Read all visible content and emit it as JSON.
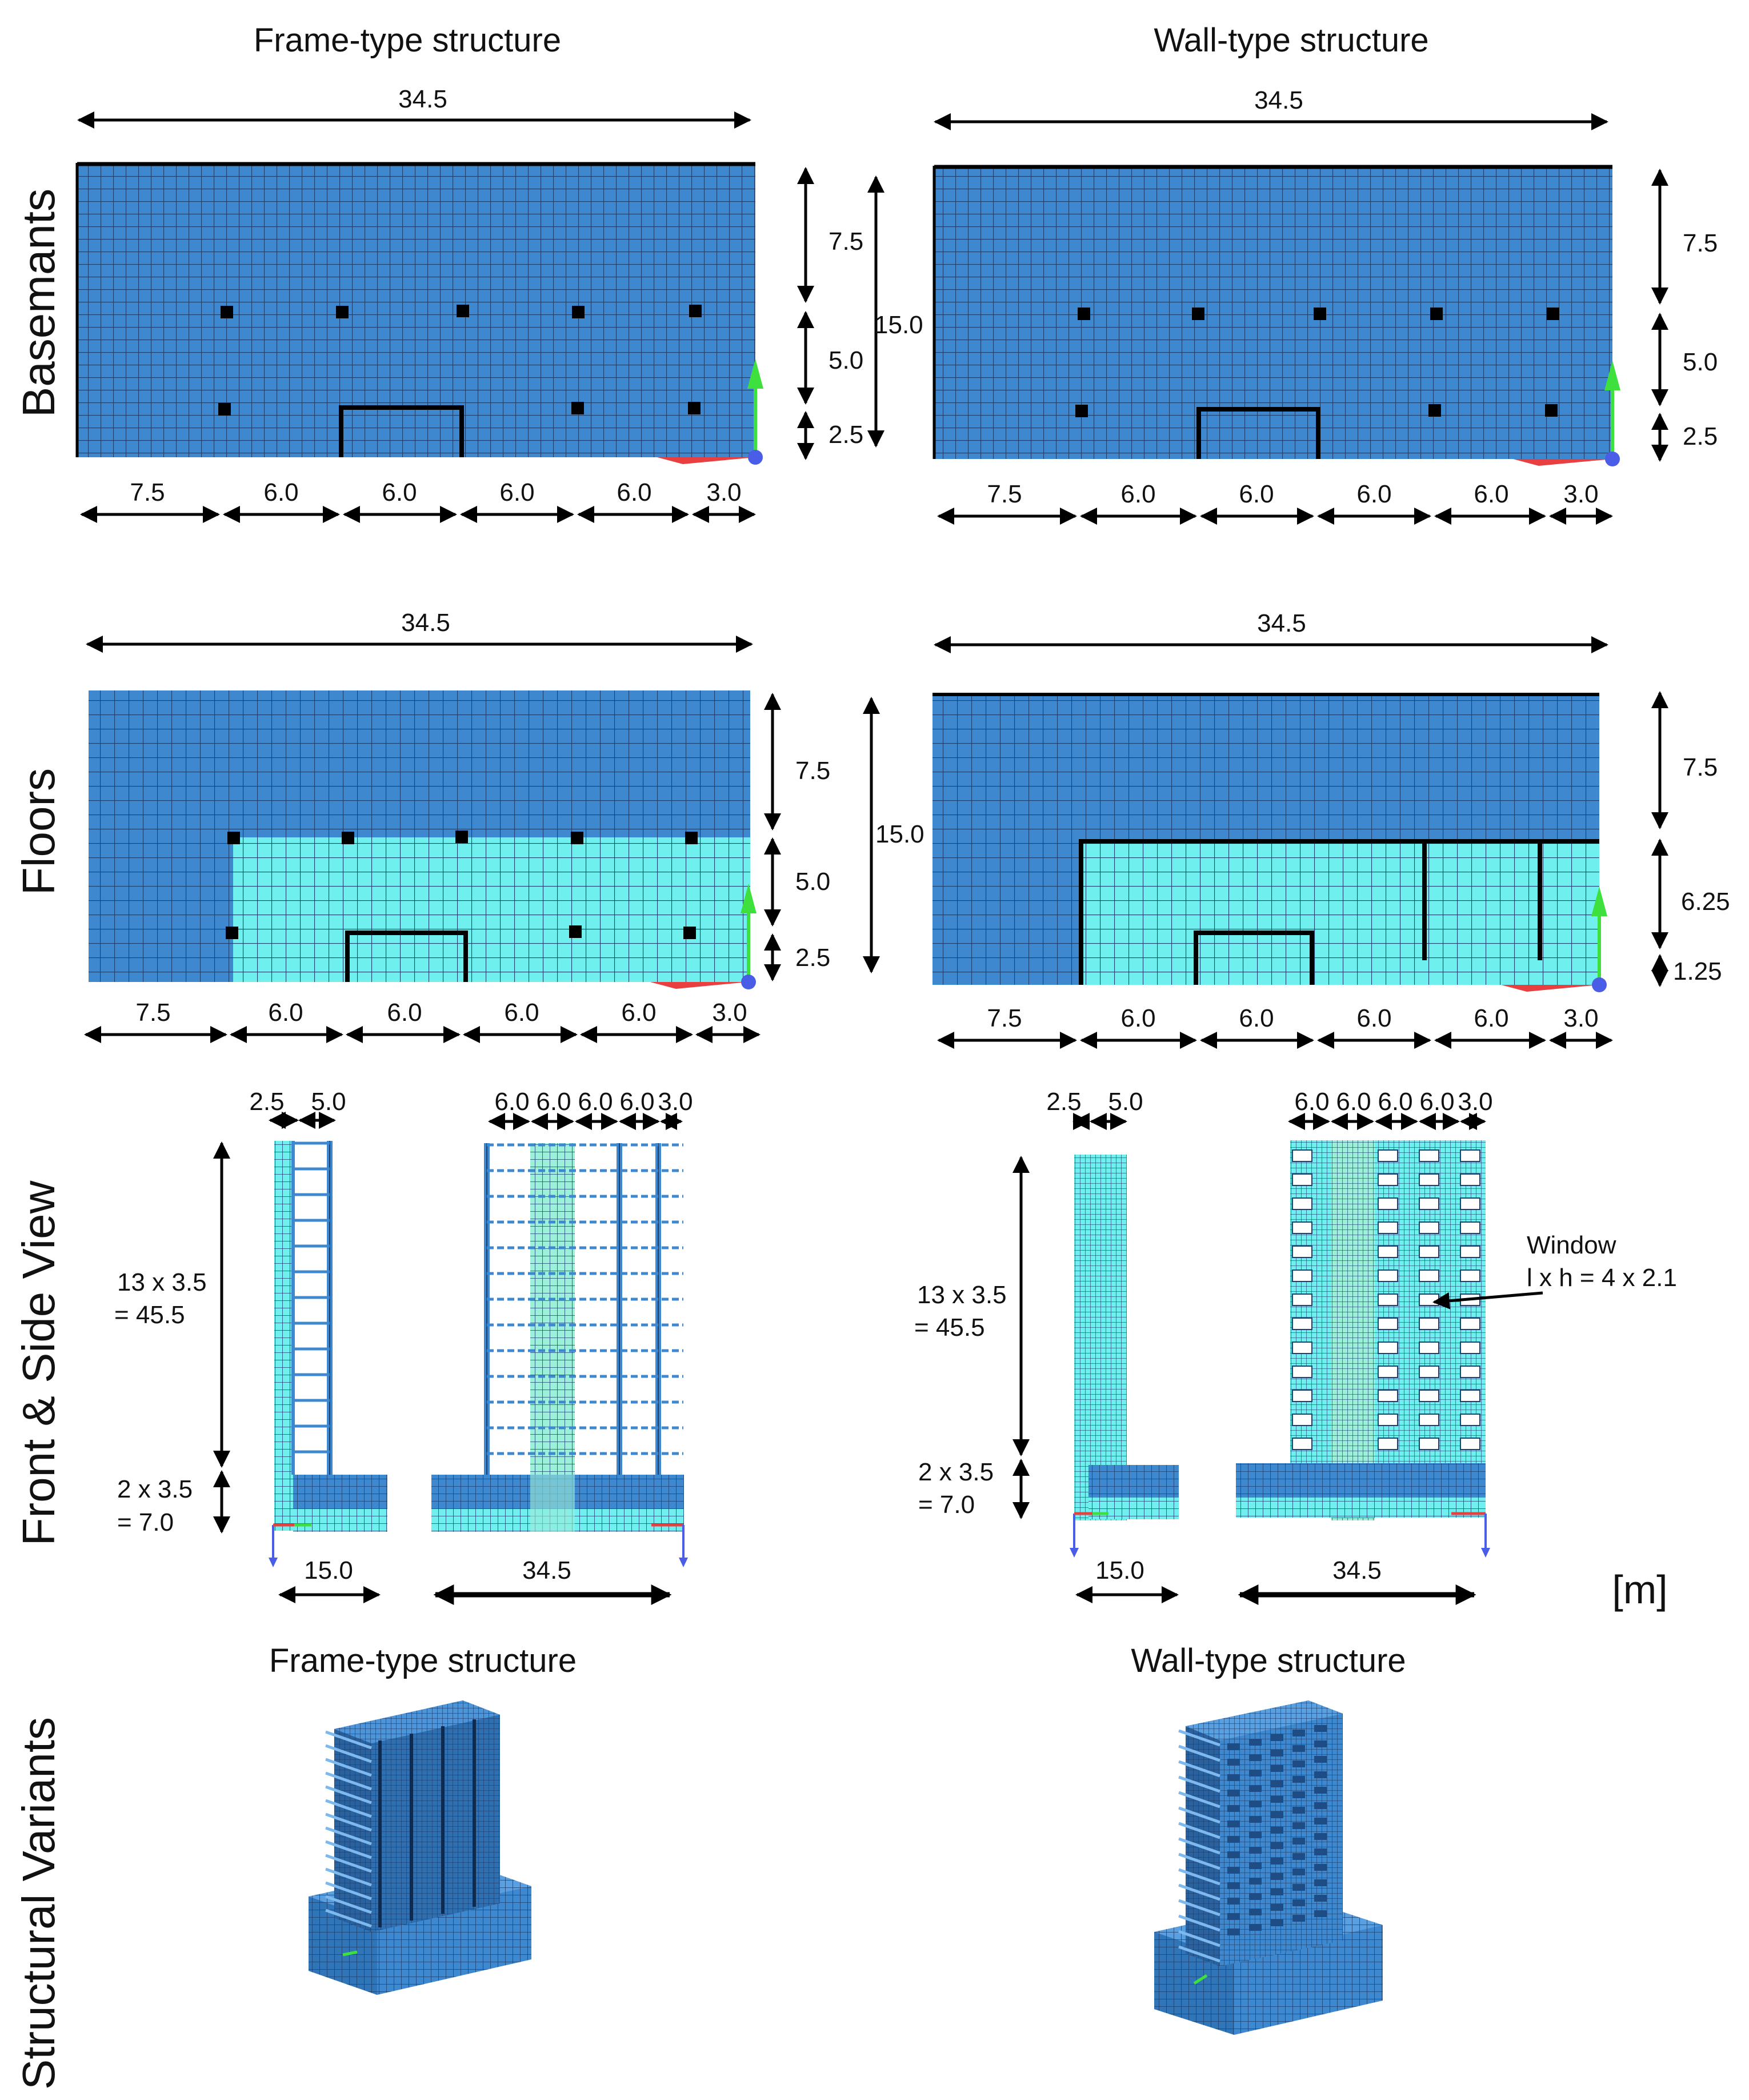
{
  "columns": {
    "frame_title": "Frame-type structure",
    "wall_title": "Wall-type structure"
  },
  "rows": {
    "basements": "Basemants",
    "floors": "Floors",
    "views": "Front & Side View",
    "variants": "Structural Variants"
  },
  "plan_dims": {
    "total_width": "34.5",
    "total_depth": "15.0",
    "bays": [
      "7.5",
      "6.0",
      "6.0",
      "6.0",
      "6.0",
      "3.0"
    ],
    "depth_split": [
      "7.5",
      "5.0",
      "2.5"
    ],
    "wall_floor_depth_split": [
      "7.5",
      "6.25",
      "1.25"
    ]
  },
  "elevation": {
    "side_top": [
      "2.5",
      "5.0"
    ],
    "front_top": [
      "6.0",
      "6.0",
      "6.0",
      "6.0",
      "3.0"
    ],
    "upper_label_1": "13 x 3.5",
    "upper_label_2": "= 45.5",
    "lower_label_1": "2 x 3.5",
    "lower_label_2": "= 7.0",
    "side_width": "15.0",
    "front_width": "34.5",
    "window_label_1": "Window",
    "window_label_2": "l x h = 4 x 2.1",
    "unit": "[m]"
  },
  "colors": {
    "dark_blue": "#3d88cf",
    "light_cyan": "#6ff0ef",
    "grid_line": "#1c3f6e",
    "axis_green": "#3ee03e",
    "axis_blue": "#4a5de6",
    "axis_red": "#e84040"
  }
}
